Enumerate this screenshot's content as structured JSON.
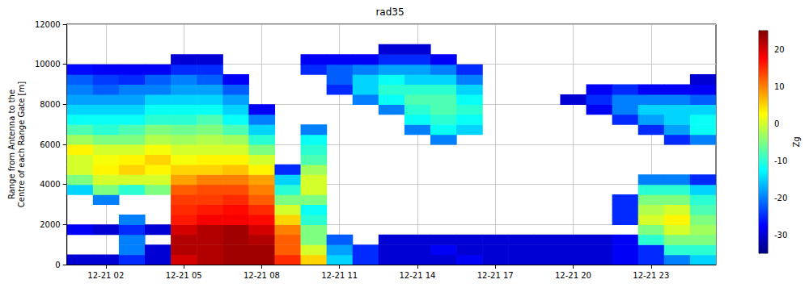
{
  "chart_data": {
    "type": "heatmap",
    "title": "rad35",
    "y_label": "Range from Antenna to the\nCentre of each Range Gate [m]",
    "grid": true,
    "xlim": [
      0.5,
      25.5
    ],
    "xticks": [
      {
        "value": 2,
        "label": "12-21 02"
      },
      {
        "value": 5,
        "label": "12-21 05"
      },
      {
        "value": 8,
        "label": "12-21 08"
      },
      {
        "value": 11,
        "label": "12-21 11"
      },
      {
        "value": 14,
        "label": "12-21 14"
      },
      {
        "value": 17,
        "label": "12-21 17"
      },
      {
        "value": 20,
        "label": "12-21 20"
      },
      {
        "value": 23,
        "label": "12-21 23"
      }
    ],
    "ylim": [
      0,
      12000
    ],
    "yticks": [
      0,
      2000,
      4000,
      6000,
      8000,
      10000,
      12000
    ],
    "x": [
      1,
      2,
      3,
      4,
      5,
      6,
      7,
      8,
      9,
      10,
      11,
      12,
      13,
      14,
      15,
      16,
      17,
      18,
      19,
      20,
      21,
      22,
      23,
      24,
      25
    ],
    "y": [
      250,
      750,
      1250,
      1750,
      2250,
      2750,
      3250,
      3750,
      4250,
      4750,
      5250,
      5750,
      6250,
      6750,
      7250,
      7750,
      8250,
      8750,
      9250,
      9750,
      10250,
      10750,
      11250,
      11750
    ],
    "cells": [
      [
        -30,
        null,
        null,
        -28,
        null,
        null,
        null,
        -15,
        -5,
        0,
        0,
        3,
        -3,
        -8,
        -12,
        -15,
        -18,
        -20,
        -22,
        -27,
        null,
        null,
        null,
        null
      ],
      [
        -30,
        null,
        null,
        -30,
        null,
        null,
        -20,
        -5,
        0,
        3,
        2,
        0,
        -5,
        -10,
        -12,
        -15,
        -18,
        -22,
        -24,
        -28,
        null,
        null,
        null,
        null
      ],
      [
        -25,
        -20,
        -20,
        -25,
        -20,
        null,
        null,
        -10,
        0,
        5,
        3,
        0,
        -5,
        -8,
        -12,
        -15,
        -18,
        -20,
        -25,
        -28,
        null,
        null,
        null,
        null
      ],
      [
        -30,
        -30,
        null,
        -30,
        null,
        null,
        null,
        -5,
        0,
        3,
        5,
        2,
        -2,
        -5,
        -10,
        -12,
        -15,
        -20,
        -22,
        -28,
        null,
        null,
        null,
        null
      ],
      [
        20,
        22,
        22,
        20,
        16,
        15,
        14,
        12,
        8,
        5,
        2,
        0,
        -3,
        -6,
        -10,
        -12,
        -15,
        -18,
        -20,
        -25,
        -30,
        null,
        null,
        null
      ],
      [
        22,
        22,
        22,
        22,
        18,
        16,
        14,
        13,
        10,
        5,
        3,
        0,
        -2,
        -5,
        -8,
        -12,
        -15,
        -18,
        -22,
        -25,
        -30,
        null,
        null,
        null
      ],
      [
        23,
        23,
        23,
        23,
        18,
        17,
        15,
        13,
        10,
        6,
        3,
        0,
        -3,
        -8,
        -12,
        -15,
        -18,
        -22,
        -28,
        null,
        null,
        null,
        null,
        null
      ],
      [
        23,
        23,
        22,
        20,
        17,
        15,
        12,
        10,
        8,
        3,
        0,
        -5,
        -10,
        -15,
        -20,
        -28,
        null,
        null,
        null,
        null,
        null,
        null,
        null,
        null
      ],
      [
        15,
        12,
        12,
        10,
        5,
        0,
        -5,
        -10,
        -15,
        -25,
        null,
        null,
        null,
        null,
        null,
        null,
        null,
        null,
        null,
        null,
        null,
        null,
        null,
        null
      ],
      [
        5,
        0,
        -5,
        -5,
        -10,
        -12,
        -5,
        0,
        0,
        -3,
        -8,
        -10,
        -12,
        -20,
        null,
        null,
        null,
        null,
        null,
        -25,
        -28,
        null,
        null,
        null
      ],
      [
        -15,
        -18,
        -22,
        null,
        null,
        null,
        null,
        null,
        null,
        null,
        null,
        null,
        null,
        null,
        null,
        null,
        null,
        -25,
        -22,
        -22,
        -28,
        null,
        null,
        null
      ],
      [
        -25,
        -25,
        null,
        null,
        null,
        null,
        null,
        null,
        null,
        null,
        null,
        null,
        null,
        null,
        null,
        null,
        -20,
        -15,
        -15,
        -20,
        -28,
        null,
        null,
        null
      ],
      [
        -30,
        -30,
        -30,
        null,
        null,
        null,
        null,
        null,
        null,
        null,
        null,
        null,
        null,
        null,
        null,
        -20,
        -12,
        -10,
        -12,
        -18,
        -25,
        -30,
        null,
        null
      ],
      [
        -30,
        -30,
        -30,
        null,
        null,
        null,
        null,
        null,
        null,
        null,
        null,
        null,
        null,
        -20,
        -12,
        -10,
        -8,
        -10,
        -15,
        -18,
        -25,
        -30,
        null,
        null
      ],
      [
        -30,
        -28,
        -30,
        null,
        null,
        null,
        null,
        null,
        null,
        null,
        null,
        null,
        -20,
        -12,
        -10,
        -8,
        -8,
        -10,
        -15,
        -20,
        -28,
        null,
        null,
        null
      ],
      [
        -28,
        -30,
        -30,
        null,
        null,
        null,
        null,
        null,
        null,
        null,
        null,
        null,
        null,
        -15,
        -12,
        -10,
        -12,
        -15,
        -20,
        -25,
        null,
        null,
        null,
        null
      ],
      [
        -30,
        -30,
        -30,
        null,
        null,
        null,
        null,
        null,
        null,
        null,
        null,
        null,
        null,
        null,
        null,
        null,
        null,
        null,
        null,
        null,
        null,
        null,
        null,
        null
      ],
      [
        -30,
        -30,
        -30,
        null,
        null,
        null,
        null,
        null,
        null,
        null,
        null,
        null,
        null,
        null,
        null,
        null,
        null,
        null,
        null,
        null,
        null,
        null,
        null,
        null
      ],
      [
        -30,
        -30,
        -30,
        null,
        null,
        null,
        null,
        null,
        null,
        null,
        null,
        null,
        null,
        null,
        null,
        null,
        null,
        null,
        null,
        null,
        null,
        null,
        null,
        null
      ],
      [
        -30,
        -30,
        -30,
        null,
        null,
        null,
        null,
        null,
        null,
        null,
        null,
        null,
        null,
        null,
        null,
        null,
        -30,
        null,
        null,
        null,
        null,
        null,
        null,
        null
      ],
      [
        -30,
        -30,
        -30,
        null,
        null,
        null,
        null,
        null,
        null,
        null,
        null,
        null,
        null,
        null,
        null,
        -28,
        -25,
        -28,
        null,
        null,
        null,
        null,
        null,
        null
      ],
      [
        -28,
        -28,
        -28,
        null,
        -25,
        -25,
        -25,
        null,
        null,
        null,
        null,
        null,
        null,
        null,
        -25,
        -20,
        -20,
        -25,
        null,
        null,
        null,
        null,
        null,
        null
      ],
      [
        -25,
        -25,
        -10,
        -5,
        0,
        -2,
        -5,
        -10,
        -20,
        null,
        null,
        null,
        null,
        -25,
        -18,
        -15,
        -20,
        -28,
        null,
        null,
        null,
        null,
        null,
        null
      ],
      [
        -20,
        -10,
        -5,
        0,
        3,
        0,
        -5,
        -10,
        -20,
        null,
        null,
        null,
        -25,
        -18,
        -15,
        -15,
        -20,
        -28,
        null,
        null,
        null,
        null,
        null,
        null
      ],
      [
        -15,
        -10,
        -5,
        -3,
        -5,
        -8,
        -10,
        -15,
        -25,
        null,
        null,
        null,
        -20,
        -12,
        -12,
        -15,
        -22,
        -28,
        -30,
        null,
        null,
        null,
        null,
        null
      ]
    ],
    "colorbar": {
      "label": "Zg",
      "range": [
        -35,
        25
      ],
      "ticks": [
        -30,
        -20,
        -10,
        0,
        10,
        20
      ]
    }
  }
}
